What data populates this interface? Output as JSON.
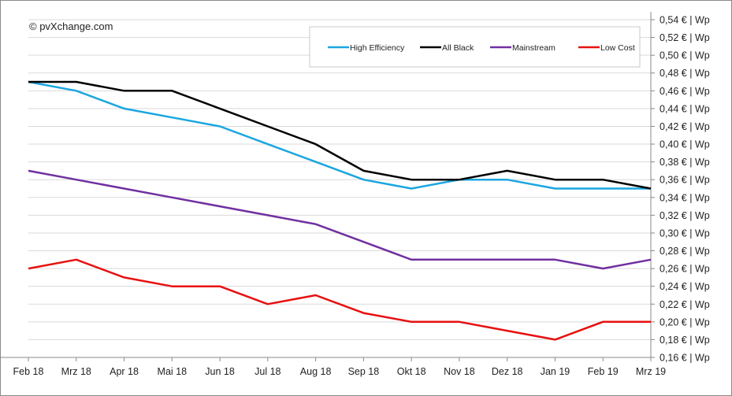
{
  "watermark": "© pvXchange.com",
  "chart_data": {
    "type": "line",
    "title": "",
    "xlabel": "",
    "ylabel": "",
    "categories": [
      "Feb 18",
      "Mrz 18",
      "Apr 18",
      "Mai 18",
      "Jun 18",
      "Jul 18",
      "Aug 18",
      "Sep 18",
      "Okt 18",
      "Nov 18",
      "Dez 18",
      "Jan 19",
      "Feb 19",
      "Mrz 19"
    ],
    "ylim": [
      0.16,
      0.54
    ],
    "ystep": 0.02,
    "ytick_format": "{v} € | Wp",
    "y_axis_side": "right",
    "grid": "horizontal",
    "legend_position": "top-right",
    "series": [
      {
        "name": "High Efficiency",
        "color": "#1aa6e0",
        "values": [
          0.47,
          0.46,
          0.44,
          0.43,
          0.42,
          0.4,
          0.38,
          0.36,
          0.35,
          0.36,
          0.36,
          0.35,
          0.35,
          0.35
        ]
      },
      {
        "name": "All Black",
        "color": "#000000",
        "values": [
          0.47,
          0.47,
          0.46,
          0.46,
          0.44,
          0.42,
          0.4,
          0.37,
          0.36,
          0.36,
          0.37,
          0.36,
          0.36,
          0.35
        ]
      },
      {
        "name": "Mainstream",
        "color": "#7030a0",
        "values": [
          0.37,
          0.36,
          0.35,
          0.34,
          0.33,
          0.32,
          0.31,
          0.29,
          0.27,
          0.27,
          0.27,
          0.27,
          0.26,
          0.27
        ]
      },
      {
        "name": "Low Cost",
        "color": "#e81010",
        "values": [
          0.26,
          0.27,
          0.25,
          0.24,
          0.24,
          0.22,
          0.23,
          0.21,
          0.2,
          0.2,
          0.19,
          0.18,
          0.2,
          0.2
        ]
      }
    ]
  }
}
